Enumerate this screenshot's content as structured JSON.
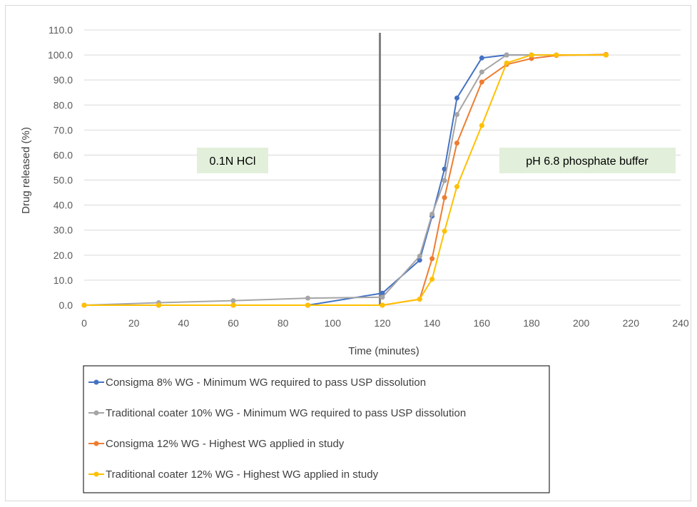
{
  "chart_data": {
    "type": "line",
    "xlabel": "Time (minutes)",
    "ylabel": "Drug released (%)",
    "xlim": [
      0,
      240
    ],
    "ylim": [
      0,
      110
    ],
    "xticks": [
      0,
      20,
      40,
      60,
      80,
      100,
      120,
      140,
      160,
      180,
      200,
      220,
      240
    ],
    "xtick_labels": [
      "0",
      "20",
      "40",
      "60",
      "80",
      "100",
      "120",
      "140",
      "160",
      "180",
      "200",
      "220",
      "240"
    ],
    "yticks": [
      0,
      10,
      20,
      30,
      40,
      50,
      60,
      70,
      80,
      90,
      100,
      110
    ],
    "ytick_labels": [
      "0.0",
      "10.0",
      "20.0",
      "30.0",
      "40.0",
      "50.0",
      "60.0",
      "70.0",
      "80.0",
      "90.0",
      "100.0",
      "110.0"
    ],
    "grid": "horizontal",
    "legend_position": "bottom",
    "vertical_line_x": 119,
    "annotations": [
      {
        "text": "0.1N HCl"
      },
      {
        "text": "pH 6.8 phosphate buffer"
      }
    ],
    "series": [
      {
        "name": "Consigma 8% WG - Minimum WG required to pass USP dissolution",
        "color": "#4472c4",
        "x": [
          0,
          30,
          60,
          90,
          120,
          135,
          140,
          145,
          150,
          160,
          170,
          180,
          190,
          210
        ],
        "y": [
          0,
          0,
          0,
          0,
          4.8,
          18.0,
          35.6,
          54.4,
          82.8,
          98.8,
          100.0,
          100.0,
          100.0,
          100.0
        ]
      },
      {
        "name": "Traditional coater 10% WG - Minimum WG required to pass USP dissolution",
        "color": "#a5a5a5",
        "x": [
          0,
          30,
          60,
          90,
          120,
          135,
          140,
          145,
          150,
          160,
          170,
          180,
          190,
          210
        ],
        "y": [
          0,
          1.0,
          1.8,
          2.8,
          3.2,
          19.6,
          36.4,
          49.8,
          76.2,
          93.2,
          100.0,
          100.0,
          100.0,
          100.0
        ]
      },
      {
        "name": "Consigma 12% WG - Highest WG applied in study",
        "color": "#ed7d31",
        "x": [
          0,
          30,
          60,
          90,
          120,
          135,
          140,
          145,
          150,
          160,
          170,
          180,
          190,
          210
        ],
        "y": [
          0,
          0,
          0,
          0,
          0,
          2.4,
          18.6,
          43.0,
          64.8,
          89.2,
          96.2,
          98.6,
          99.8,
          100.2
        ]
      },
      {
        "name": "Traditional coater 12% WG - Highest WG applied in study",
        "color": "#ffc000",
        "x": [
          0,
          30,
          60,
          90,
          120,
          135,
          140,
          145,
          150,
          160,
          170,
          180,
          190,
          210
        ],
        "y": [
          0,
          0,
          0,
          0,
          0,
          2.4,
          10.4,
          29.6,
          47.4,
          71.8,
          96.8,
          100.0,
          100.0,
          100.0
        ]
      }
    ]
  }
}
